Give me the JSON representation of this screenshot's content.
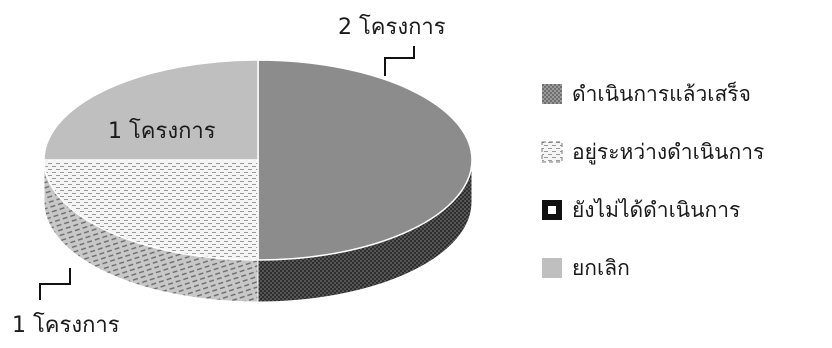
{
  "chart_data": {
    "type": "pie",
    "title": "",
    "style": "3d-exploded-ellipse",
    "slices": [
      {
        "label": "ดำเนินการแล้วเสร็จ",
        "value": 2,
        "data_label": "2 โครงการ",
        "pattern": "dotted-dark",
        "color": "#8c8c8c"
      },
      {
        "label": "อยู่ระหว่างดำเนินการ",
        "value": 1,
        "data_label": "1 โครงการ",
        "pattern": "dashed-light",
        "color": "#f0f0f0"
      },
      {
        "label": "ยังไม่ได้ดำเนินการ",
        "value": 0,
        "data_label": "",
        "pattern": "solid-dark",
        "color": "#3a3a3a"
      },
      {
        "label": "ยกเลิก",
        "value": 1,
        "data_label": "1 โครงการ",
        "pattern": "solid-light",
        "color": "#bfbfbf"
      }
    ],
    "legend_position": "right"
  }
}
